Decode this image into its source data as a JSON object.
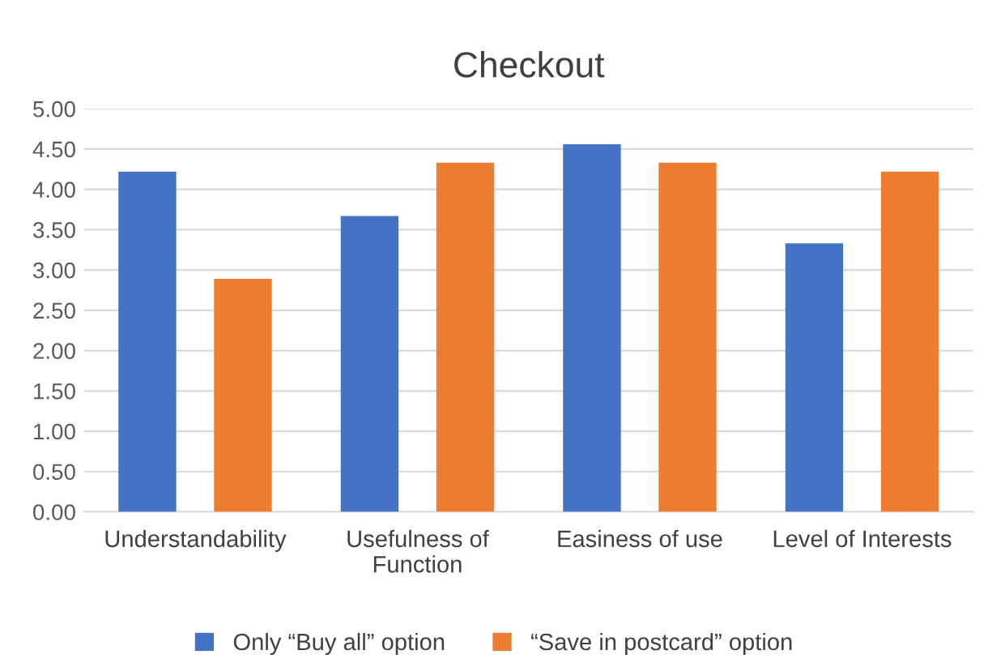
{
  "chart_data": {
    "type": "bar",
    "title": "Checkout",
    "categories": [
      "Understandability",
      "Usefulness of\nFunction",
      "Easiness of use",
      "Level of Interests"
    ],
    "series": [
      {
        "name": "Only “Buy all” option",
        "color": "#4472c4",
        "values": [
          4.22,
          3.67,
          4.56,
          3.33
        ]
      },
      {
        "name": "“Save in postcard” option",
        "color": "#ed7d31",
        "values": [
          2.89,
          4.33,
          4.33,
          4.22
        ]
      }
    ],
    "ylim": [
      0,
      5
    ],
    "yticks": [
      {
        "value": 0,
        "label": "0.00"
      },
      {
        "value": 0.5,
        "label": "0.50"
      },
      {
        "value": 1,
        "label": "1.00"
      },
      {
        "value": 1.5,
        "label": "1.50"
      },
      {
        "value": 2,
        "label": "2.00"
      },
      {
        "value": 2.5,
        "label": "2.50"
      },
      {
        "value": 3,
        "label": "3.00"
      },
      {
        "value": 3.5,
        "label": "3.50"
      },
      {
        "value": 4,
        "label": "4.00"
      },
      {
        "value": 4.5,
        "label": "4.50"
      },
      {
        "value": 5,
        "label": "5.00"
      }
    ],
    "grid": "y",
    "legend": "bottom"
  }
}
